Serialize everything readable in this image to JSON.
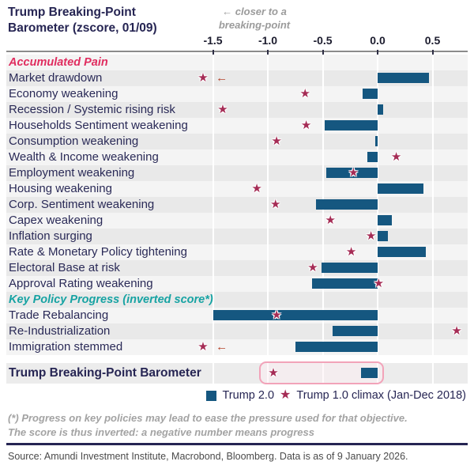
{
  "title": {
    "line1": "Trump Breaking-Point",
    "line2": "Barometer (zscore, 01/09)"
  },
  "annotation": {
    "line1": "← closer to a",
    "line2": "breaking-point"
  },
  "icons": {
    "star": "★",
    "offscale_left_arrow": "←",
    "legend_square": "■"
  },
  "colors": {
    "bar": "#155780",
    "star": "#a52c55",
    "offscale_arrow": "#b5442c",
    "section_pain": "#e02d5f",
    "section_policy": "#17a3a3",
    "navy": "#262553",
    "highlight_border": "#f2a3b9",
    "axis_line": "#8c8c8c",
    "row_gray": "#e9e9e9",
    "row_light": "#f4f4f4"
  },
  "chart_data": {
    "type": "bar",
    "orientation": "horizontal",
    "unit": "zscore",
    "title": "Trump Breaking-Point Barometer (zscore, 01/09)",
    "xlim": [
      -1.75,
      0.8
    ],
    "axis_ticks": [
      -1.5,
      -1.0,
      -0.5,
      0.0,
      0.5
    ],
    "axis_tick_labels": [
      "-1.5",
      "-1.0",
      "-0.5",
      "0.0",
      "0.5"
    ],
    "series_names": [
      "Trump 2.0",
      "Trump 1.0 climax (Jan-Dec 2018)"
    ],
    "rows": [
      {
        "type": "section",
        "label": "Accumulated Pain",
        "color": "pain"
      },
      {
        "type": "item",
        "label": "Market drawdown",
        "bar": 0.47,
        "star": null,
        "star_offscale": true
      },
      {
        "type": "item",
        "label": "Economy weakening",
        "bar": -0.14,
        "star": -0.66
      },
      {
        "type": "item",
        "label": "Recession / Systemic rising risk",
        "bar": 0.05,
        "star": -1.41
      },
      {
        "type": "item",
        "label": "Households Sentiment weakening",
        "bar": -0.48,
        "star": -0.65
      },
      {
        "type": "item",
        "label": "Consumption weakening",
        "bar": -0.02,
        "star": -0.92
      },
      {
        "type": "item",
        "label": "Wealth & Income weakening",
        "bar": -0.09,
        "star": 0.17
      },
      {
        "type": "item",
        "label": "Employment weakening",
        "bar": -0.47,
        "star": -0.22
      },
      {
        "type": "item",
        "label": "Housing weakening",
        "bar": 0.42,
        "star": -1.1
      },
      {
        "type": "item",
        "label": "Corp. Sentiment weakening",
        "bar": -0.56,
        "star": -0.93
      },
      {
        "type": "item",
        "label": "Capex weakening",
        "bar": 0.13,
        "star": -0.43
      },
      {
        "type": "item",
        "label": "Inflation surging",
        "bar": 0.09,
        "star": -0.06
      },
      {
        "type": "item",
        "label": "Rate & Monetary Policy tightening",
        "bar": 0.44,
        "star": -0.24
      },
      {
        "type": "item",
        "label": "Electoral Base at risk",
        "bar": -0.51,
        "star": -0.59
      },
      {
        "type": "item",
        "label": "Approval Rating weakening",
        "bar": -0.6,
        "star": 0.01
      },
      {
        "type": "section",
        "label": "Key Policy Progress (inverted score*)",
        "color": "policy"
      },
      {
        "type": "item",
        "label": "Trade Rebalancing",
        "bar": -1.5,
        "star": -0.92
      },
      {
        "type": "item",
        "label": "Re-Industrialization",
        "bar": -0.41,
        "star": 0.72
      },
      {
        "type": "item",
        "label": "Immigration stemmed",
        "bar": -0.75,
        "star": null,
        "star_offscale": true
      },
      {
        "type": "gap"
      },
      {
        "type": "total",
        "label": "Trump Breaking-Point Barometer",
        "bar": -0.15,
        "star": -0.95,
        "highlight": true
      }
    ],
    "legend": [
      {
        "label": "Trump 2.0",
        "marker": "square"
      },
      {
        "label": "Trump 1.0 climax (Jan-Dec 2018)",
        "marker": "star"
      }
    ]
  },
  "footnote": {
    "line1": "(*) Progress on key policies may lead to ease the pressure used for that objective.",
    "line2": "The score is thus inverted: a negative number means progress"
  },
  "source": "Source: Amundi Investment Institute, Macrobond, Bloomberg. Data is as of 9 January 2026."
}
